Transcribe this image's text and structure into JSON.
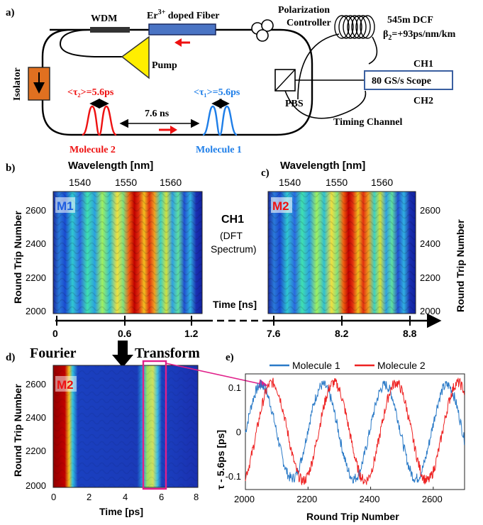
{
  "panel_a": {
    "label": "a)",
    "wdm": "WDM",
    "fiber_prefix": "Er",
    "fiber_sup": "3+",
    "fiber_suffix": " doped Fiber",
    "polarization_line1": "Polarization",
    "polarization_line2": "Controller",
    "dcf_line1": "545m DCF",
    "dcf_beta": "β",
    "dcf_beta_sub": "2",
    "dcf_beta_rest": "=+93ps/nm/km",
    "pump": "Pump",
    "isolator": "Isolator",
    "tau2": "<τ₂>=5.6ps",
    "tau1": "<τ₁>=5.6ps",
    "separation": "7.6 ns",
    "pbs": "PBS",
    "ch1": "CH1",
    "ch2": "CH2",
    "scope": "80 GS/s Scope",
    "timing": "Timing Channel",
    "molecule2": "Molecule 2",
    "molecule1": "Molecule 1",
    "colors": {
      "fiber": "#4a74c4",
      "isolator": "#e07020",
      "pump": "#ffee00",
      "red": "#ee1111",
      "blue": "#1e7ee8",
      "scope_border": "#3a5fa0"
    }
  },
  "panel_b": {
    "label": "b)",
    "top_axis_title": "Wavelength [nm]",
    "top_ticks": [
      "1540",
      "1550",
      "1560"
    ],
    "y_title": "Round Trip Number",
    "y_ticks": [
      "2600",
      "2400",
      "2200",
      "2000"
    ],
    "tag": "M1"
  },
  "panel_c": {
    "label": "c)",
    "top_axis_title": "Wavelength [nm]",
    "top_ticks": [
      "1540",
      "1550",
      "1560"
    ],
    "y_title": "Round Trip Number",
    "y_ticks": [
      "2600",
      "2400",
      "2200",
      "2000"
    ],
    "tag": "M2"
  },
  "center": {
    "ch1": "CH1",
    "dft1": "(DFT",
    "dft2": "Spectrum)",
    "time_title": "Time [ns]",
    "time_ticks": [
      "0",
      "0.6",
      "1.2",
      "7.6",
      "8.2",
      "8.8"
    ]
  },
  "fourier": {
    "word1": "Fourier",
    "word2": "Transform"
  },
  "panel_d": {
    "label": "d)",
    "y_title": "Round Trip Number",
    "y_ticks": [
      "2600",
      "2400",
      "2200",
      "2000"
    ],
    "x_ticks": [
      "0",
      "2",
      "4",
      "6",
      "8"
    ],
    "x_title": "Time [ps]",
    "tag": "M2"
  },
  "chart_data": {
    "type": "line",
    "xlabel": "Round Trip Number",
    "ylabel": "τ - 5.6ps [ps]",
    "xlim": [
      2000,
      2700
    ],
    "ylim": [
      -0.13,
      0.13
    ],
    "x_ticks": [
      "2000",
      "2200",
      "2400",
      "2600"
    ],
    "y_ticks": [
      "0.1",
      "0",
      "-0.1"
    ],
    "legend_position": "top",
    "series": [
      {
        "name": "Molecule 1",
        "color": "#2a7ac7",
        "amplitude": 0.105,
        "period": 198,
        "phase_x": 2050,
        "noise": 0.012
      },
      {
        "name": "Molecule 2",
        "color": "#ee2222",
        "amplitude": 0.11,
        "period": 198,
        "phase_x": 2085,
        "noise": 0.012
      }
    ],
    "label": "e)"
  }
}
